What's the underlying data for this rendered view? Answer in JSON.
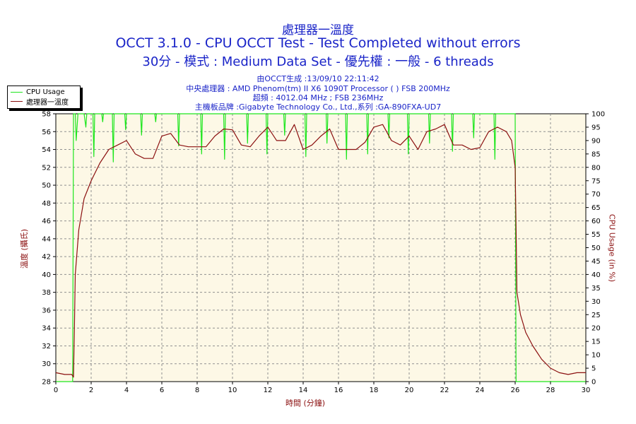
{
  "header": {
    "title_top": "處理器一溫度",
    "title_main": "OCCT 3.1.0 - CPU OCCT Test - Test Completed without errors",
    "title_sub": "30分 - 模式 : Medium Data Set - 優先權 : 一般 - 6 threads",
    "info_line1": "由OCCT生成 :13/09/10 22:11:42",
    "info_line2": "中央處理器 : AMD Phenom(tm) II X6 1090T Processor (  ) FSB 200MHz",
    "info_line3": "超頻 : 4012.04 MHz ; FSB 236MHz",
    "info_line4": "主機板品牌 :Gigabyte Technology Co., Ltd.,系列 :GA-890FXA-UD7"
  },
  "legend": {
    "cpu_usage": "CPU Usage",
    "temperature": "處理器一溫度"
  },
  "colors": {
    "plot_bg": "#fdf8e6",
    "cpu_usage": "#1ee61e",
    "temperature": "#8b1010",
    "title": "#1a24c8"
  },
  "chart_data": {
    "type": "line",
    "xlabel": "時間 (分鐘)",
    "ylabel_left": "溫度 (攝氏)",
    "ylabel_right": "CPU Usage (in %)",
    "xlim": [
      0,
      30
    ],
    "ylim_left": [
      28,
      58
    ],
    "ylim_right": [
      0,
      100
    ],
    "x_ticks": [
      0,
      2,
      4,
      6,
      8,
      10,
      12,
      14,
      16,
      18,
      20,
      22,
      24,
      26,
      28,
      30
    ],
    "y_ticks_left": [
      28,
      30,
      32,
      34,
      36,
      38,
      40,
      42,
      44,
      46,
      48,
      50,
      52,
      54,
      56,
      58
    ],
    "y_ticks_right": [
      0,
      5,
      10,
      15,
      20,
      25,
      30,
      35,
      40,
      45,
      50,
      55,
      60,
      65,
      70,
      75,
      80,
      85,
      90,
      95,
      100
    ],
    "grid": true,
    "legend_position": "top-left",
    "series": [
      {
        "name": "處理器一溫度",
        "axis": "left",
        "x": [
          0,
          0.5,
          0.9,
          1.0,
          1.05,
          1.1,
          1.3,
          1.6,
          2.0,
          2.5,
          3.0,
          3.5,
          4.0,
          4.5,
          5.0,
          5.5,
          5.8,
          6.0,
          6.5,
          7.0,
          7.5,
          8.0,
          8.5,
          9.0,
          9.5,
          10.0,
          10.5,
          11.0,
          11.5,
          12.0,
          12.5,
          13.0,
          13.5,
          14.0,
          14.5,
          15.0,
          15.5,
          16.0,
          16.5,
          17.0,
          17.5,
          18.0,
          18.5,
          19.0,
          19.5,
          20.0,
          20.5,
          21.0,
          21.5,
          22.0,
          22.5,
          23.0,
          23.5,
          24.0,
          24.5,
          25.0,
          25.5,
          25.8,
          26.0,
          26.05,
          26.1,
          26.3,
          26.6,
          27.0,
          27.5,
          28.0,
          28.5,
          29.0,
          29.5,
          30.0
        ],
        "y": [
          29,
          28.8,
          28.8,
          28.5,
          34,
          40,
          45,
          48.5,
          50.5,
          52.5,
          54,
          54.5,
          55,
          53.5,
          53,
          53,
          54.5,
          55.5,
          55.8,
          54.5,
          54.3,
          54.3,
          54.3,
          55.5,
          56.3,
          56.2,
          54.5,
          54.3,
          55.5,
          56.5,
          55,
          55,
          56.8,
          54,
          54.5,
          55.5,
          56.3,
          54,
          54,
          54,
          54.8,
          56.5,
          56.8,
          55,
          54.5,
          55.5,
          54,
          56,
          56.3,
          56.8,
          54.5,
          54.5,
          54,
          54.2,
          56,
          56.5,
          56,
          55,
          52,
          45,
          38,
          35.5,
          33.5,
          32,
          30.5,
          29.5,
          29,
          28.8,
          29,
          29
        ]
      },
      {
        "name": "CPU Usage",
        "axis": "right",
        "x": [
          0,
          0.95,
          1.0,
          1.05,
          1.1,
          1.15,
          1.25,
          1.6,
          1.7,
          1.75,
          2.1,
          2.15,
          2.2,
          2.4,
          2.6,
          2.65,
          2.7,
          3.0,
          3.2,
          3.25,
          3.3,
          3.5,
          3.9,
          3.95,
          4.0,
          4.3,
          4.8,
          4.85,
          4.9,
          5.3,
          5.6,
          5.65,
          5.7,
          6.1,
          6.9,
          6.95,
          7.0,
          7.4,
          8.2,
          8.25,
          8.3,
          8.8,
          9.5,
          9.55,
          9.6,
          9.9,
          10.8,
          10.85,
          10.9,
          11.2,
          11.9,
          11.95,
          12.0,
          12.5,
          12.9,
          12.95,
          13.0,
          13.5,
          14.1,
          14.15,
          14.2,
          14.7,
          15.3,
          15.35,
          15.4,
          15.8,
          16.4,
          16.45,
          16.5,
          16.9,
          17.6,
          17.65,
          17.7,
          18.1,
          18.8,
          18.85,
          18.9,
          19.3,
          19.9,
          19.95,
          20.0,
          20.4,
          21.1,
          21.15,
          21.2,
          21.6,
          22.4,
          22.45,
          22.5,
          22.9,
          23.6,
          23.65,
          23.7,
          24.2,
          24.8,
          24.85,
          24.9,
          25.3,
          25.95,
          26.0,
          26.05,
          26.1,
          30.0
        ],
        "y": [
          0,
          0,
          100,
          100,
          100,
          90,
          100,
          100,
          95,
          100,
          100,
          84,
          100,
          100,
          100,
          97,
          100,
          100,
          100,
          82,
          100,
          100,
          100,
          94,
          100,
          100,
          100,
          92,
          100,
          100,
          100,
          97,
          100,
          100,
          100,
          88,
          100,
          100,
          100,
          85,
          100,
          100,
          100,
          83,
          100,
          100,
          100,
          89,
          100,
          100,
          100,
          85,
          100,
          100,
          100,
          92,
          100,
          100,
          100,
          84,
          100,
          100,
          100,
          89,
          100,
          100,
          100,
          83,
          100,
          100,
          100,
          85,
          100,
          100,
          100,
          91,
          100,
          100,
          100,
          85,
          100,
          100,
          100,
          89,
          100,
          100,
          100,
          86,
          100,
          100,
          100,
          91,
          100,
          100,
          100,
          83,
          100,
          100,
          100,
          100,
          0,
          0,
          0
        ]
      }
    ]
  }
}
